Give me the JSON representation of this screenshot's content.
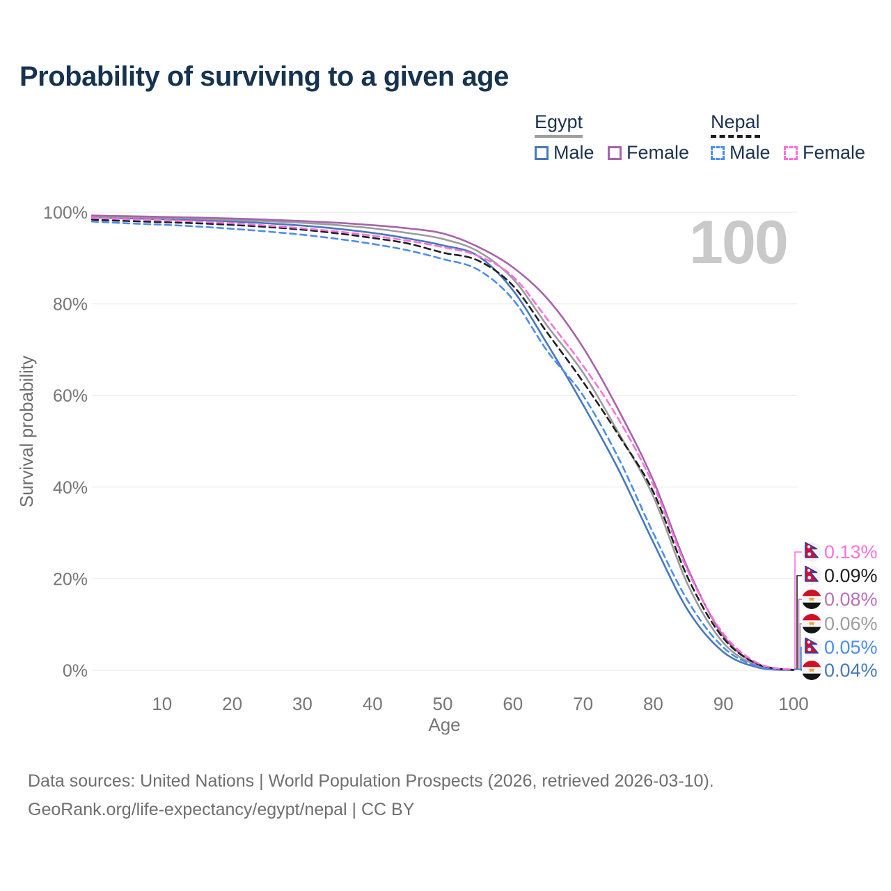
{
  "title": "Probability of surviving to a given age",
  "watermark_age": "100",
  "legend": {
    "groups": [
      {
        "country": "Egypt",
        "line_style": "solid",
        "underline_color": "#9e9e9e",
        "items": [
          {
            "label": "Male",
            "color": "#4678c0"
          },
          {
            "label": "Female",
            "color": "#a763ab"
          }
        ]
      },
      {
        "country": "Nepal",
        "line_style": "dashed",
        "underline_color": "#1c1c1c",
        "items": [
          {
            "label": "Male",
            "color": "#4b8df2"
          },
          {
            "label": "Female",
            "color": "#ff70dc"
          }
        ]
      }
    ]
  },
  "chart_data": {
    "type": "line",
    "title": "Probability of surviving to a given age",
    "xlabel": "Age",
    "ylabel": "Survival probability",
    "xlim": [
      0,
      100
    ],
    "ylim": [
      0,
      100
    ],
    "x_ticks": [
      10,
      20,
      30,
      40,
      50,
      60,
      70,
      80,
      90,
      100
    ],
    "y_ticks": [
      0,
      20,
      40,
      60,
      80,
      100
    ],
    "y_tick_suffix": "%",
    "grid": "horizontal",
    "legend_position": "top-right",
    "x": [
      0,
      5,
      10,
      15,
      20,
      25,
      30,
      35,
      40,
      45,
      50,
      55,
      60,
      65,
      70,
      75,
      80,
      85,
      90,
      95,
      100
    ],
    "series": [
      {
        "name": "Egypt Male",
        "country": "Egypt",
        "sex": "Male",
        "color": "#4678c0",
        "dashed": false,
        "values": [
          98.9,
          98.7,
          98.5,
          98.3,
          98.0,
          97.6,
          97.1,
          96.4,
          95.5,
          94.3,
          92.8,
          90.5,
          83.0,
          71.0,
          58.0,
          44.0,
          28.0,
          13.0,
          4.0,
          0.6,
          0.04
        ],
        "end_value_label": "0.04%"
      },
      {
        "name": "Egypt Both sexes",
        "country": "Egypt",
        "sex": "Both",
        "color": "#9b9b9b",
        "dashed": false,
        "values": [
          99.1,
          98.95,
          98.8,
          98.6,
          98.35,
          98.05,
          97.7,
          97.2,
          96.5,
          95.5,
          94.2,
          91.5,
          85.5,
          75.0,
          65.0,
          52.0,
          38.0,
          18.5,
          6.0,
          1.0,
          0.06
        ],
        "end_value_label": "0.06%"
      },
      {
        "name": "Egypt Female",
        "country": "Egypt",
        "sex": "Female",
        "color": "#a763ab",
        "dashed": false,
        "values": [
          99.3,
          99.15,
          99.0,
          98.85,
          98.65,
          98.4,
          98.1,
          97.7,
          97.2,
          96.5,
          95.4,
          92.5,
          88.0,
          81.0,
          70.5,
          57.0,
          41.5,
          22.0,
          7.5,
          1.2,
          0.08
        ],
        "end_value_label": "0.08%"
      },
      {
        "name": "Nepal Male",
        "country": "Nepal",
        "sex": "Male",
        "color": "#4b8df2",
        "dashed": true,
        "values": [
          98.0,
          97.6,
          97.3,
          96.9,
          96.4,
          95.8,
          95.1,
          94.2,
          93.1,
          91.7,
          89.8,
          87.5,
          81.0,
          69.5,
          60.0,
          46.5,
          30.0,
          15.0,
          5.0,
          0.8,
          0.05
        ],
        "end_value_label": "0.05%"
      },
      {
        "name": "Nepal Both sexes",
        "country": "Nepal",
        "sex": "Both",
        "color": "#1f1f1f",
        "dashed": true,
        "values": [
          98.4,
          98.1,
          97.85,
          97.6,
          97.25,
          96.8,
          96.2,
          95.4,
          94.4,
          93.2,
          91.2,
          89.5,
          84.0,
          73.5,
          63.0,
          51.5,
          39.0,
          20.0,
          7.0,
          1.3,
          0.09
        ],
        "end_value_label": "0.09%"
      },
      {
        "name": "Nepal Female",
        "country": "Nepal",
        "sex": "Female",
        "color": "#ff70dc",
        "dashed": true,
        "values": [
          98.8,
          98.5,
          98.3,
          98.0,
          97.6,
          97.1,
          96.5,
          95.8,
          94.9,
          93.8,
          92.4,
          90.5,
          86.0,
          76.5,
          66.5,
          55.0,
          40.5,
          21.5,
          8.0,
          1.5,
          0.13
        ],
        "end_value_label": "0.13%"
      }
    ],
    "end_labels": [
      {
        "text": "0.13%",
        "color": "#ff70dc",
        "flag": "nepal"
      },
      {
        "text": "0.09%",
        "color": "#1f1f1f",
        "flag": "nepal"
      },
      {
        "text": "0.08%",
        "color": "#b973b9",
        "flag": "egypt"
      },
      {
        "text": "0.06%",
        "color": "#9e9e9e",
        "flag": "egypt"
      },
      {
        "text": "0.05%",
        "color": "#4b8df2",
        "flag": "nepal"
      },
      {
        "text": "0.04%",
        "color": "#4678c0",
        "flag": "egypt"
      }
    ]
  },
  "footer": {
    "line1": "Data sources: United Nations | World Population Prospects (2026, retrieved 2026-03-10).",
    "line2": "GeoRank.org/life-expectancy/egypt/nepal | CC BY"
  }
}
